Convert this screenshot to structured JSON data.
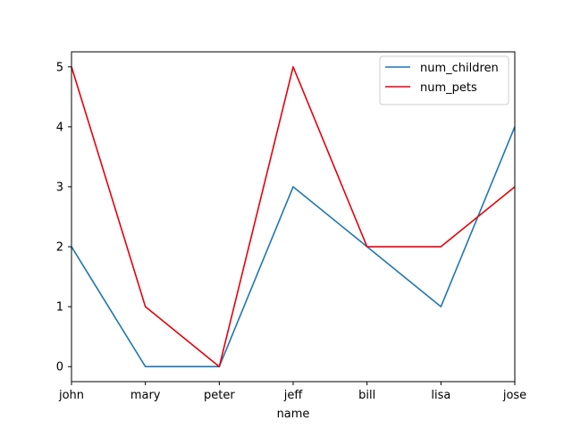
{
  "chart_data": {
    "type": "line",
    "categories": [
      "john",
      "mary",
      "peter",
      "jeff",
      "bill",
      "lisa",
      "jose"
    ],
    "xlabel": "name",
    "ylabel": "",
    "ylim": [
      -0.25,
      5.25
    ],
    "yticks": [
      0,
      1,
      2,
      3,
      4,
      5
    ],
    "grid": false,
    "legend_position": "top-right",
    "series": [
      {
        "name": "num_children",
        "color": "#1f77b4",
        "values": [
          2,
          0,
          0,
          3,
          2,
          1,
          4
        ]
      },
      {
        "name": "num_pets",
        "color": "#e8000b",
        "values": [
          5,
          1,
          0,
          5,
          2,
          2,
          3
        ]
      }
    ]
  }
}
